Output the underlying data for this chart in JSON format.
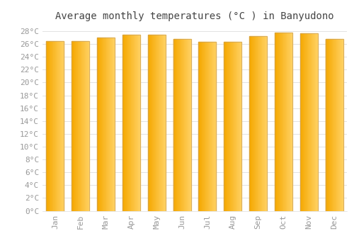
{
  "title": "Average monthly temperatures (°C ) in Banyudono",
  "months": [
    "Jan",
    "Feb",
    "Mar",
    "Apr",
    "May",
    "Jun",
    "Jul",
    "Aug",
    "Sep",
    "Oct",
    "Nov",
    "Dec"
  ],
  "temperatures": [
    26.5,
    26.5,
    27.0,
    27.4,
    27.4,
    26.8,
    26.3,
    26.4,
    27.2,
    27.8,
    27.7,
    26.8
  ],
  "bar_color_left": "#F5A800",
  "bar_color_right": "#FFD060",
  "bar_edge_color": "#C8A060",
  "background_color": "#FFFFFF",
  "plot_bg_color": "#FFFFFF",
  "grid_color": "#DDDDDD",
  "ylim": [
    0,
    29
  ],
  "yticks": [
    0,
    2,
    4,
    6,
    8,
    10,
    12,
    14,
    16,
    18,
    20,
    22,
    24,
    26,
    28
  ],
  "title_fontsize": 10,
  "tick_fontsize": 8,
  "font_color": "#999999",
  "title_color": "#444444",
  "bar_width": 0.7
}
